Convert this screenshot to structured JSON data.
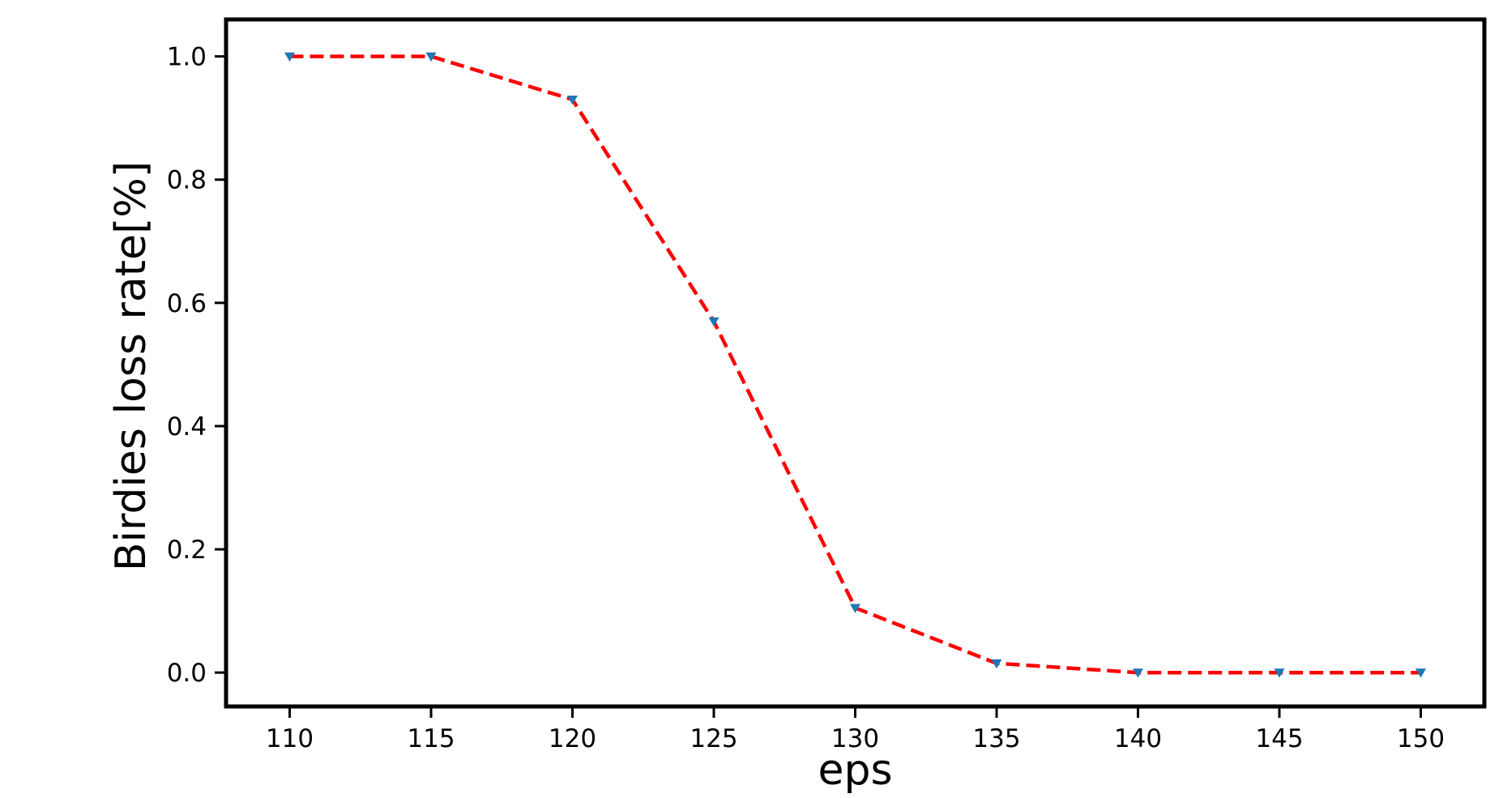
{
  "chart_data": {
    "type": "line",
    "title": "",
    "xlabel": "eps",
    "ylabel": "Birdies loss rate[%]",
    "x": [
      110,
      115,
      120,
      125,
      130,
      135,
      140,
      145,
      150
    ],
    "series": [
      {
        "values": [
          1.0,
          1.0,
          0.93,
          0.57,
          0.105,
          0.015,
          0.0,
          0.0,
          0.0
        ],
        "line_color": "#ff0000",
        "line_style": "dashed",
        "marker": "triangle-down",
        "marker_color": "#1f77b4"
      }
    ],
    "xlim": [
      107.75,
      152.25
    ],
    "ylim": [
      -0.055,
      1.06
    ],
    "xticks": [
      110,
      115,
      120,
      125,
      130,
      135,
      140,
      145,
      150
    ],
    "xtick_labels": [
      "110",
      "115",
      "120",
      "125",
      "130",
      "135",
      "140",
      "145",
      "150"
    ],
    "yticks": [
      0.0,
      0.2,
      0.4,
      0.6,
      0.8,
      1.0
    ],
    "ytick_labels": [
      "0.0",
      "0.2",
      "0.4",
      "0.6",
      "0.8",
      "1.0"
    ],
    "grid": false,
    "legend": "none",
    "frame_color": "#000000"
  }
}
